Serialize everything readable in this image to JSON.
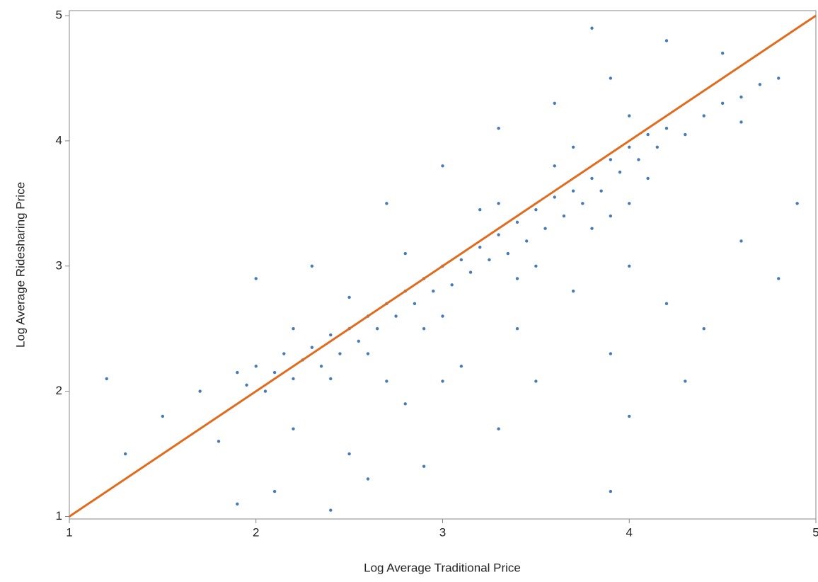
{
  "chart_data": {
    "type": "scatter",
    "x_label": "Log Average Traditional Price",
    "y_label": "Log Average Ridesharing Price",
    "color": "#0b4f9c",
    "x": [
      1.9,
      1.95,
      2.0,
      2.05,
      2.1,
      2.15,
      2.2,
      2.25,
      2.3,
      2.35,
      2.4,
      2.45,
      2.5,
      2.55,
      2.6,
      2.65,
      2.7,
      2.75,
      2.8,
      2.85,
      2.9,
      2.95,
      3.0,
      3.05,
      3.1,
      3.15,
      3.2,
      3.25,
      3.3,
      3.35,
      3.4,
      3.45,
      3.5,
      3.55,
      3.6,
      3.65,
      3.7,
      3.75,
      3.8,
      3.85,
      3.9,
      3.95,
      4.0,
      4.05,
      4.1,
      4.15,
      4.2,
      4.4,
      4.5,
      4.6,
      4.7,
      2.2,
      2.4,
      2.6,
      2.8,
      3.0,
      3.2,
      3.4,
      3.6,
      3.8,
      4.0,
      4.0,
      3.5,
      3.3,
      2.9,
      2.5,
      3.7,
      3.9,
      4.1,
      4.3,
      4.6,
      2.2,
      2.5,
      2.8,
      3.1,
      3.4,
      3.7,
      4.0,
      4.2,
      3.9,
      3.5,
      3.0,
      2.7,
      4.3,
      1.8,
      2.1,
      2.6,
      3.3,
      4.0,
      2.3,
      2.7,
      3.0,
      3.3,
      3.6,
      3.9,
      4.2,
      2.0,
      1.7,
      1.5,
      1.2,
      3.8,
      4.5,
      4.8,
      4.9,
      4.6,
      4.4,
      1.9,
      2.4,
      3.9,
      2.9,
      1.3,
      4.8
    ],
    "y": [
      2.15,
      2.05,
      2.2,
      2.0,
      2.15,
      2.3,
      2.1,
      2.25,
      2.35,
      2.2,
      2.45,
      2.3,
      2.5,
      2.4,
      2.6,
      2.5,
      2.7,
      2.6,
      2.8,
      2.7,
      2.9,
      2.8,
      3.0,
      2.85,
      3.05,
      2.95,
      3.15,
      3.05,
      3.25,
      3.1,
      3.35,
      3.2,
      3.45,
      3.3,
      3.55,
      3.4,
      3.6,
      3.5,
      3.7,
      3.6,
      3.85,
      3.75,
      3.95,
      3.85,
      4.05,
      3.95,
      4.1,
      4.2,
      4.3,
      4.35,
      4.45,
      2.5,
      2.1,
      2.3,
      3.1,
      2.6,
      3.45,
      2.9,
      3.8,
      3.3,
      4.2,
      3.5,
      3.0,
      3.5,
      2.5,
      2.75,
      3.95,
      3.4,
      3.7,
      4.05,
      4.15,
      1.7,
      1.5,
      1.9,
      2.2,
      2.5,
      2.8,
      3.0,
      2.7,
      2.3,
      2.08,
      2.08,
      2.08,
      2.08,
      1.6,
      1.2,
      1.3,
      1.7,
      1.8,
      3.0,
      3.5,
      3.8,
      4.1,
      4.3,
      4.5,
      4.8,
      2.9,
      2.0,
      1.8,
      2.1,
      4.9,
      4.7,
      4.5,
      3.5,
      3.2,
      2.5,
      1.1,
      1.05,
      1.2,
      1.4,
      1.5,
      2.9
    ],
    "reference_line": {
      "x": [
        1,
        5
      ],
      "y": [
        1,
        5
      ],
      "color": "#e06c1f"
    },
    "xlim": [
      1,
      5
    ],
    "ylim": [
      0.98,
      5.04
    ],
    "xticks": [
      1,
      2,
      3,
      4,
      5
    ],
    "yticks": [
      1,
      2,
      3,
      4,
      5
    ]
  }
}
